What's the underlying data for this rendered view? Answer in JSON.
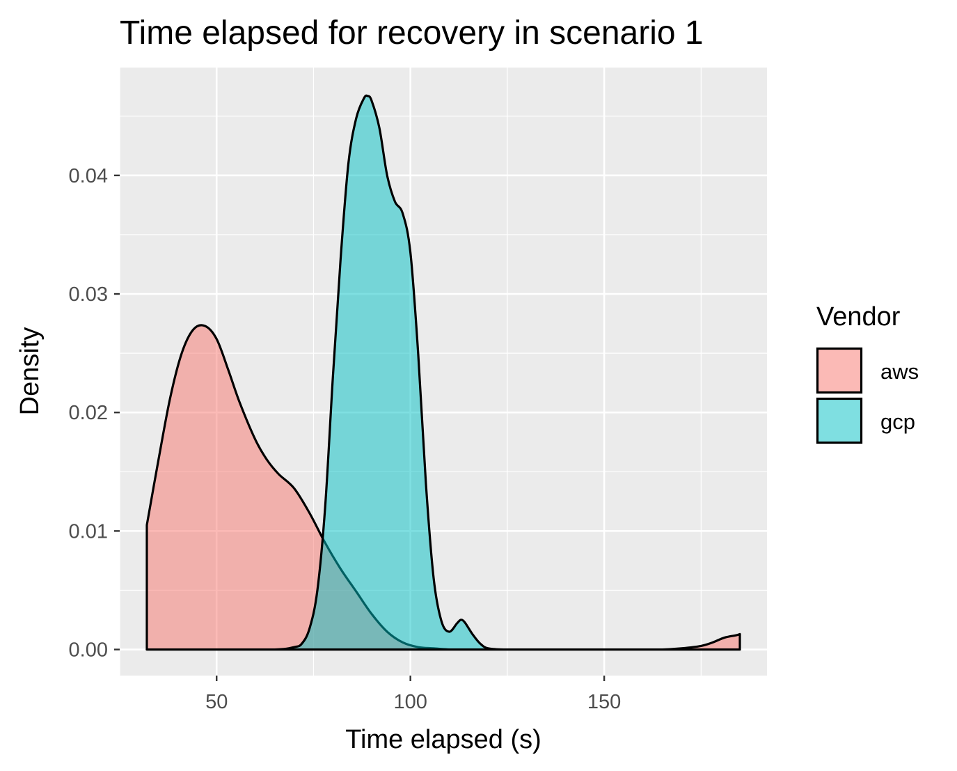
{
  "chart_data": {
    "type": "area",
    "title": "Time elapsed for recovery in scenario 1",
    "xlabel": "Time elapsed (s)",
    "ylabel": "Density",
    "xlim": [
      25,
      192
    ],
    "ylim": [
      -0.0022,
      0.0491
    ],
    "x_ticks": [
      50,
      100,
      150
    ],
    "y_ticks": [
      0.0,
      0.01,
      0.02,
      0.03,
      0.04
    ],
    "y_tick_labels": [
      "0.00",
      "0.01",
      "0.02",
      "0.03",
      "0.04"
    ],
    "grid": true,
    "legend": {
      "title": "Vendor",
      "position": "right"
    },
    "series": [
      {
        "name": "aws",
        "color": "#F8766D",
        "x": [
          32,
          35,
          38,
          41,
          44,
          47,
          50,
          53,
          56,
          60,
          63,
          66,
          70,
          74,
          78,
          82,
          86,
          90,
          94,
          98,
          102,
          106,
          110,
          115,
          120,
          125,
          130,
          140,
          150,
          160,
          165,
          170,
          175,
          178,
          181,
          184,
          185
        ],
        "y": [
          0.0105,
          0.016,
          0.0212,
          0.025,
          0.027,
          0.0273,
          0.0262,
          0.0236,
          0.0208,
          0.0177,
          0.016,
          0.0148,
          0.0136,
          0.0115,
          0.009,
          0.0068,
          0.0049,
          0.003,
          0.0015,
          0.0006,
          0.0002,
          0.0001,
          0.0,
          0.0,
          0.0,
          0.0,
          0.0,
          0.0,
          0.0,
          0.0,
          0.0,
          0.0001,
          0.0003,
          0.0006,
          0.001,
          0.0012,
          0.0013
        ]
      },
      {
        "name": "gcp",
        "color": "#00BFC4",
        "x": [
          32,
          50,
          65,
          70,
          72,
          74,
          76,
          78,
          80,
          82,
          84,
          86,
          88,
          89,
          90,
          92,
          94,
          96,
          98,
          100,
          102,
          104,
          106,
          108,
          110,
          112,
          113,
          114,
          116,
          118,
          120,
          124,
          130,
          140,
          185
        ],
        "y": [
          0.0,
          0.0,
          0.0,
          0.0002,
          0.0005,
          0.0018,
          0.005,
          0.012,
          0.023,
          0.033,
          0.041,
          0.0448,
          0.0465,
          0.0467,
          0.0463,
          0.044,
          0.04,
          0.0378,
          0.0368,
          0.0335,
          0.025,
          0.014,
          0.006,
          0.0024,
          0.0015,
          0.0022,
          0.0025,
          0.0023,
          0.0013,
          0.0005,
          0.0001,
          0.0,
          0.0,
          0.0,
          0.0
        ]
      }
    ]
  }
}
